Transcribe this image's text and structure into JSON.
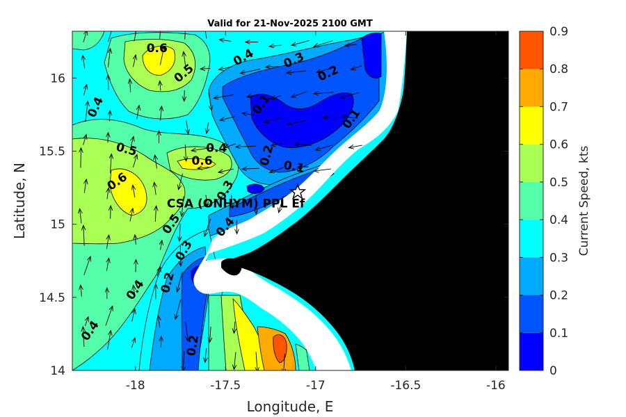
{
  "title": "Valid for 21-Nov-2025 2100 GMT",
  "chart_data": {
    "type": "contourf",
    "xlabel": "Longitude, E",
    "ylabel": "Latitude, N",
    "xlim": [
      -18.35,
      -15.93
    ],
    "ylim": [
      14.0,
      16.32
    ],
    "xticks": [
      -18,
      -17.5,
      -17,
      -16.5,
      -16
    ],
    "xtick_labels": [
      "-18",
      "-17.5",
      "-17",
      "-16.5",
      "-16"
    ],
    "yticks": [
      14,
      14.5,
      15,
      15.5,
      16
    ],
    "ytick_labels": [
      "14",
      "14.5",
      "15",
      "15.5",
      "16"
    ],
    "colorbar": {
      "label": "Current Speed, kts",
      "range": [
        0,
        0.9
      ],
      "ticks": [
        "0",
        "0.1",
        "0.2",
        "0.3",
        "0.4",
        "0.5",
        "0.6",
        "0.7",
        "0.8",
        "0.9"
      ],
      "levels": [
        {
          "from": 0.0,
          "to": 0.1,
          "color": "#0000ff"
        },
        {
          "from": 0.1,
          "to": 0.2,
          "color": "#0055ff"
        },
        {
          "from": 0.2,
          "to": 0.3,
          "color": "#00aaff"
        },
        {
          "from": 0.3,
          "to": 0.4,
          "color": "#00ffff"
        },
        {
          "from": 0.4,
          "to": 0.5,
          "color": "#55ffaa"
        },
        {
          "from": 0.5,
          "to": 0.6,
          "color": "#aaff55"
        },
        {
          "from": 0.6,
          "to": 0.7,
          "color": "#ffff00"
        },
        {
          "from": 0.7,
          "to": 0.8,
          "color": "#ffaa00"
        },
        {
          "from": 0.8,
          "to": 0.9,
          "color": "#ff5500"
        }
      ]
    },
    "contour_labels": [
      {
        "text": "0.6",
        "lon": -17.88,
        "lat": 16.2,
        "rot": 0
      },
      {
        "text": "0.4",
        "lon": -17.4,
        "lat": 16.14,
        "rot": -30
      },
      {
        "text": "0.3",
        "lon": -17.12,
        "lat": 16.12,
        "rot": -25
      },
      {
        "text": "0.2",
        "lon": -16.93,
        "lat": 16.03,
        "rot": -25
      },
      {
        "text": "0.5",
        "lon": -17.73,
        "lat": 16.03,
        "rot": -40
      },
      {
        "text": "0.4",
        "lon": -18.22,
        "lat": 15.8,
        "rot": -65
      },
      {
        "text": "0.1",
        "lon": -17.3,
        "lat": 15.82,
        "rot": -55
      },
      {
        "text": "0.1",
        "lon": -16.8,
        "lat": 15.72,
        "rot": -55
      },
      {
        "text": "0.4",
        "lon": -17.55,
        "lat": 15.52,
        "rot": 0
      },
      {
        "text": "0.5",
        "lon": -18.05,
        "lat": 15.51,
        "rot": 15
      },
      {
        "text": "0.6",
        "lon": -17.63,
        "lat": 15.43,
        "rot": 0
      },
      {
        "text": "0.2",
        "lon": -17.27,
        "lat": 15.47,
        "rot": -75
      },
      {
        "text": "0.1",
        "lon": -17.12,
        "lat": 15.39,
        "rot": 10
      },
      {
        "text": "0.6",
        "lon": -18.1,
        "lat": 15.29,
        "rot": -35
      },
      {
        "text": "0.3",
        "lon": -17.5,
        "lat": 15.23,
        "rot": -60
      },
      {
        "text": "0.5",
        "lon": -17.8,
        "lat": 15.0,
        "rot": -55
      },
      {
        "text": "0.4",
        "lon": -17.5,
        "lat": 14.98,
        "rot": -50
      },
      {
        "text": "0.3",
        "lon": -17.73,
        "lat": 14.82,
        "rot": -60
      },
      {
        "text": "0.2",
        "lon": -17.82,
        "lat": 14.6,
        "rot": -75
      },
      {
        "text": "0.4",
        "lon": -18.0,
        "lat": 14.55,
        "rot": -55
      },
      {
        "text": "0.4",
        "lon": -18.25,
        "lat": 14.27,
        "rot": -55
      },
      {
        "text": "0.2",
        "lon": -17.68,
        "lat": 14.17,
        "rot": -80
      }
    ],
    "station": {
      "name": "CSA (ONHYM) PPL Ef",
      "lon": -17.1,
      "lat": 15.22,
      "marker": "star"
    }
  }
}
